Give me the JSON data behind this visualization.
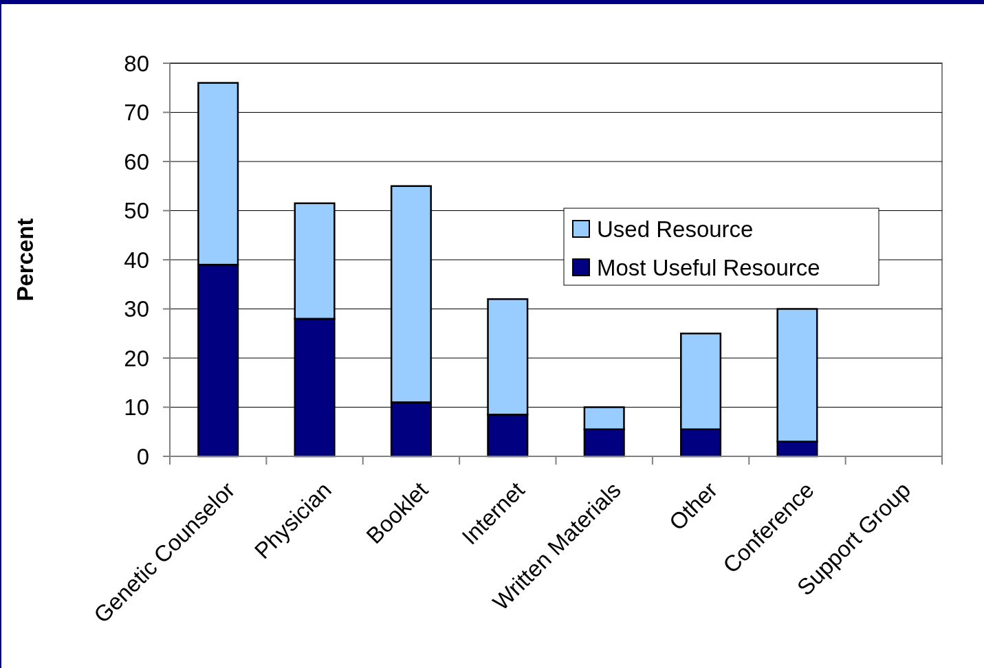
{
  "chart_data": {
    "type": "bar",
    "stacked": true,
    "ylabel": "Percent",
    "categories": [
      "Genetic Counselor",
      "Physician",
      "Booklet",
      "Internet",
      "Written Materials",
      "Other",
      "Conference",
      "Support Group"
    ],
    "series": [
      {
        "name": "Most Useful Resource",
        "color": "#000080",
        "values": [
          39,
          28,
          11,
          8.5,
          5.5,
          5.5,
          3,
          0
        ]
      },
      {
        "name": "Used Resource",
        "color": "#99ccff",
        "values": [
          37,
          23.5,
          44,
          23.5,
          4.5,
          19.5,
          27,
          0
        ]
      }
    ],
    "ylim": [
      0,
      80
    ],
    "yticks": [
      0,
      10,
      20,
      30,
      40,
      50,
      60,
      70,
      80
    ],
    "grid": "y",
    "legend": "right"
  }
}
